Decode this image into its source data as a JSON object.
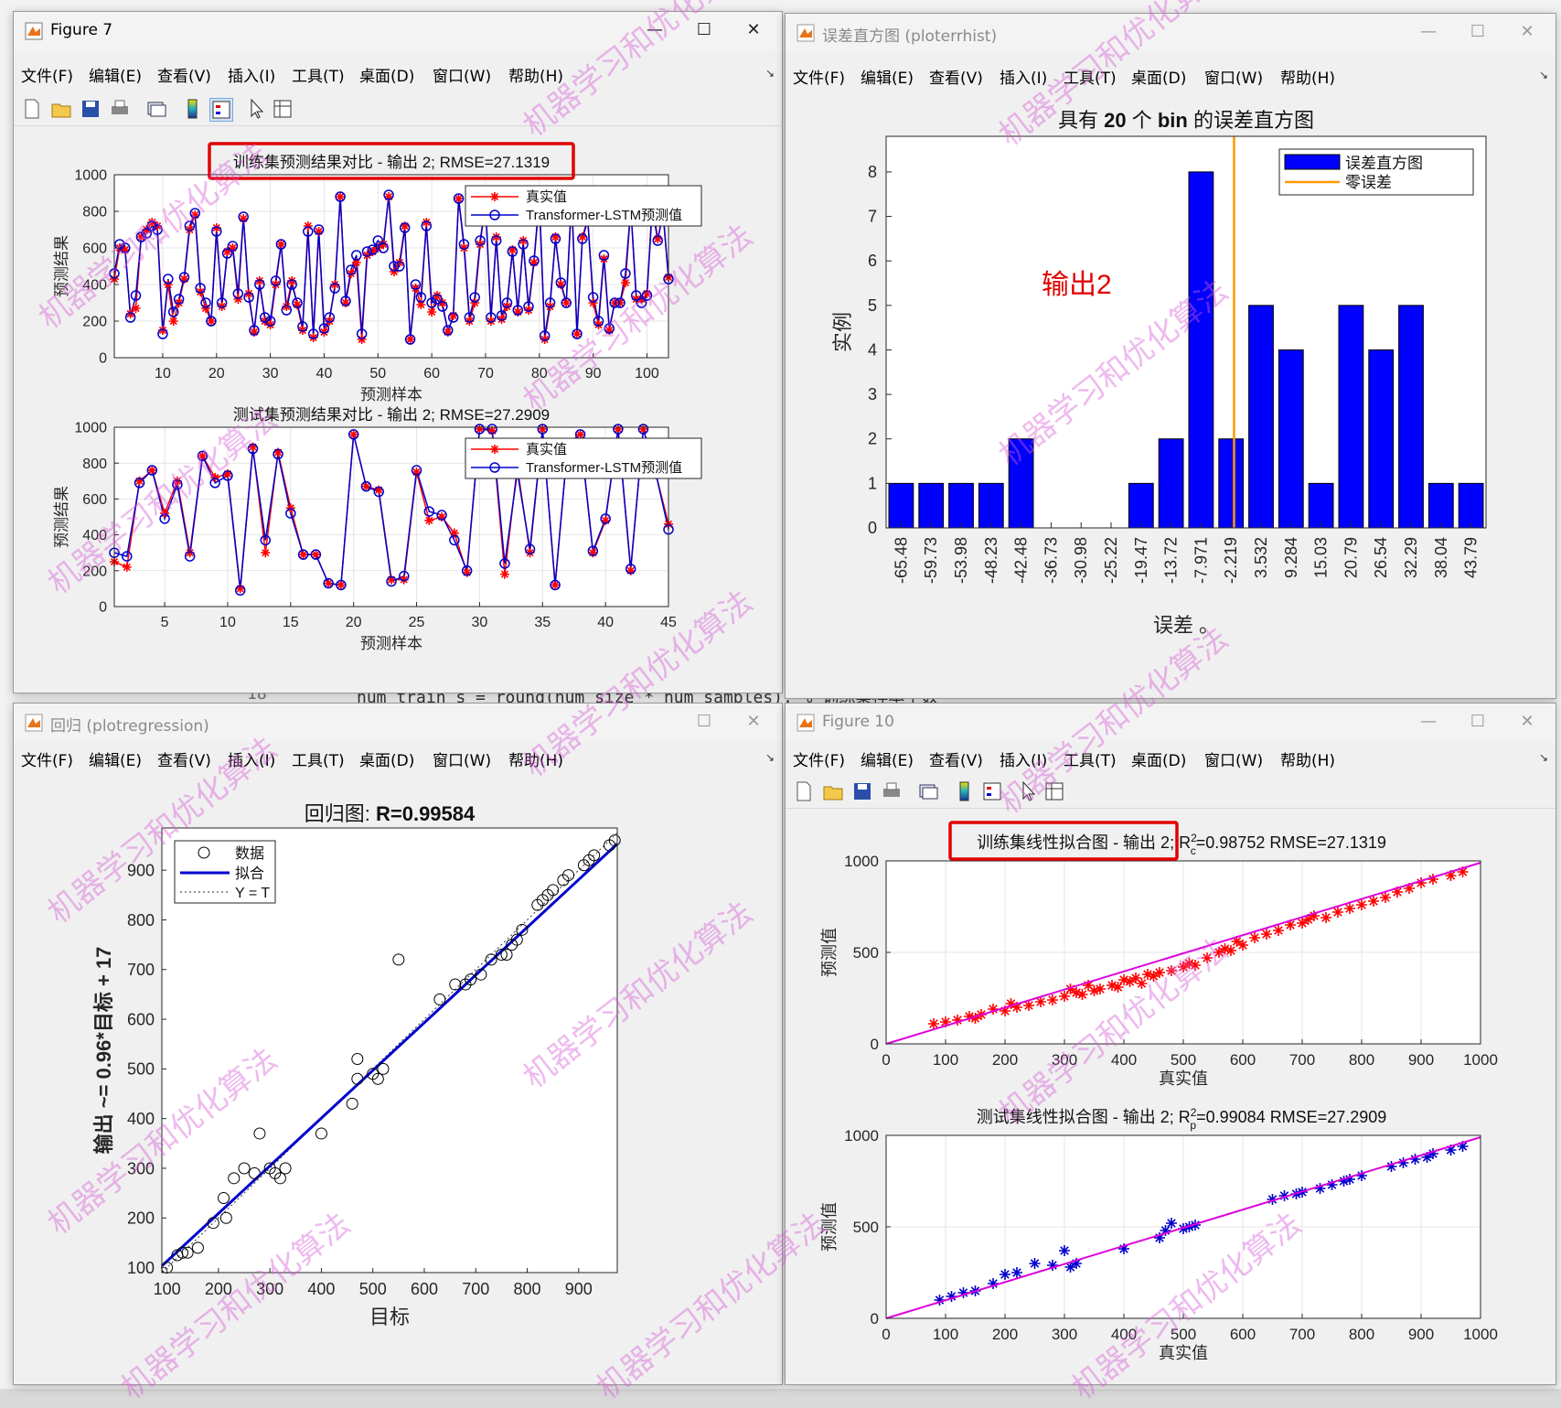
{
  "background_code": [
    {
      "text": "18",
      "x": 270,
      "y": 752
    },
    {
      "text": "num_train_s = round(num_size * num_samples); % 训练集样本个数",
      "x": 390,
      "y": 752
    }
  ],
  "menu": [
    "文件(F)",
    "编辑(E)",
    "查看(V)",
    "插入(I)",
    "工具(T)",
    "桌面(D)",
    "窗口(W)",
    "帮助(H)"
  ],
  "windows": {
    "fig7": {
      "title": "Figure 7",
      "train_title": "训练集预测结果对比 - 输出 2; RMSE=27.1319",
      "test_title": "测试集预测结果对比 - 输出 2; RMSE=27.2909",
      "xlabel": "预测样本",
      "ylabel": "预测结果",
      "legend": [
        "真实值",
        "Transformer-LSTM预测值"
      ]
    },
    "hist": {
      "title": "误差直方图 (ploterrhist)",
      "plot_title_parts": [
        "具有 ",
        "20",
        " 个 ",
        "bin",
        " 的误差直方图"
      ],
      "xlabel": "误差 。",
      "ylabel": "实例",
      "annotation": "输出2",
      "legend": [
        "误差直方图",
        "零误差"
      ]
    },
    "regr": {
      "title": "回归 (plotregression)",
      "plot_title_prefix": "回归图: ",
      "plot_title_value": "R=0.99584",
      "xlabel": "目标",
      "ylabel": "输出 ~= 0.96*目标 + 17",
      "legend": [
        "数据",
        "拟合",
        "Y = T"
      ]
    },
    "fig10": {
      "title": "Figure 10",
      "train_title_main": "训练集线性拟合图 - 输出 2; R",
      "train_title_sup": "2",
      "train_title_sub": "c",
      "train_title_tail": "=0.98752  RMSE=27.1319",
      "test_title_main": "测试集线性拟合图 - 输出 2; R",
      "test_title_sup": "2",
      "test_title_sub": "p",
      "test_title_tail": "=0.99084  RMSE=27.2909",
      "xlabel": "真实值",
      "ylabel": "预测值"
    }
  },
  "watermark": "机器学习和优化算法",
  "colors": {
    "true": "#ff0000",
    "pred": "#0000cc",
    "bar": "#0000ff",
    "zero": "#ff9900",
    "fit": "#dd00dd",
    "highlight": "#e00000"
  },
  "chart_data": [
    {
      "type": "line",
      "title": "训练集预测结果对比 - 输出 2; RMSE=27.1319",
      "xlabel": "预测样本",
      "ylabel": "预测结果",
      "xlim": [
        1,
        104
      ],
      "ylim": [
        0,
        1000
      ],
      "xticks": [
        10,
        20,
        30,
        40,
        50,
        60,
        70,
        80,
        90,
        100
      ],
      "yticks": [
        0,
        200,
        400,
        600,
        800,
        1000
      ],
      "series": [
        {
          "name": "真实值",
          "values": [
            430,
            600,
            590,
            240,
            270,
            660,
            700,
            740,
            720,
            150,
            400,
            200,
            300,
            430,
            700,
            780,
            360,
            270,
            200,
            710,
            280,
            580,
            600,
            320,
            760,
            350,
            140,
            420,
            200,
            180,
            400,
            620,
            280,
            420,
            290,
            150,
            720,
            110,
            690,
            140,
            200,
            400,
            880,
            300,
            460,
            520,
            100,
            560,
            580,
            600,
            620,
            880,
            470,
            520,
            720,
            100,
            380,
            290,
            740,
            250,
            340,
            300,
            140,
            230,
            870,
            600,
            200,
            300,
            620,
            850,
            200,
            660,
            210,
            280,
            590,
            250,
            640,
            260,
            520,
            860,
            100,
            280,
            660,
            400,
            300,
            860,
            130,
            660,
            760,
            300,
            180,
            540,
            150,
            300,
            300,
            410,
            820,
            320,
            320,
            350,
            850,
            650,
            780,
            440
          ]
        },
        {
          "name": "Transformer-LSTM预测值",
          "values": [
            460,
            620,
            600,
            220,
            340,
            660,
            680,
            720,
            700,
            130,
            430,
            250,
            320,
            440,
            720,
            790,
            380,
            300,
            200,
            690,
            300,
            570,
            610,
            350,
            770,
            330,
            150,
            400,
            220,
            200,
            420,
            620,
            260,
            400,
            300,
            170,
            690,
            130,
            700,
            160,
            220,
            380,
            880,
            310,
            480,
            560,
            130,
            580,
            590,
            640,
            600,
            890,
            500,
            500,
            710,
            100,
            400,
            330,
            720,
            300,
            320,
            280,
            150,
            220,
            870,
            620,
            220,
            330,
            640,
            840,
            220,
            640,
            230,
            300,
            580,
            260,
            620,
            280,
            530,
            880,
            120,
            300,
            650,
            410,
            300,
            880,
            130,
            650,
            750,
            330,
            200,
            560,
            160,
            300,
            300,
            460,
            820,
            340,
            300,
            340,
            820,
            640,
            800,
            430
          ]
        }
      ]
    },
    {
      "type": "line",
      "title": "测试集预测结果对比 - 输出 2; RMSE=27.2909",
      "xlabel": "预测样本",
      "ylabel": "预测结果",
      "xlim": [
        1,
        45
      ],
      "ylim": [
        0,
        1000
      ],
      "xticks": [
        5,
        10,
        15,
        20,
        25,
        30,
        35,
        40,
        45
      ],
      "yticks": [
        0,
        200,
        400,
        600,
        800,
        1000
      ],
      "series": [
        {
          "name": "真实值",
          "values": [
            250,
            220,
            700,
            760,
            520,
            700,
            300,
            840,
            720,
            740,
            100,
            890,
            300,
            860,
            550,
            290,
            290,
            130,
            120,
            960,
            670,
            650,
            150,
            150,
            750,
            480,
            500,
            410,
            190,
            990,
            980,
            180,
            780,
            300,
            990,
            120,
            910,
            960,
            300,
            480,
            990,
            200,
            990,
            740,
            460
          ]
        },
        {
          "name": "Transformer-LSTM预测值",
          "values": [
            300,
            280,
            690,
            760,
            490,
            680,
            280,
            840,
            690,
            730,
            90,
            880,
            370,
            850,
            520,
            290,
            290,
            130,
            120,
            960,
            670,
            640,
            140,
            170,
            760,
            530,
            510,
            370,
            200,
            990,
            990,
            240,
            750,
            320,
            990,
            120,
            900,
            960,
            310,
            490,
            990,
            210,
            990,
            740,
            430
          ]
        }
      ]
    },
    {
      "type": "bar",
      "title": "具有 20 个 bin 的误差直方图",
      "xlabel": "误差 。",
      "ylabel": "实例",
      "categories": [
        "-65.48",
        "-59.73",
        "-53.98",
        "-48.23",
        "-42.48",
        "-36.73",
        "-30.98",
        "-25.22",
        "-19.47",
        "-13.72",
        "-7.971",
        "-2.219",
        "3.532",
        "9.284",
        "15.03",
        "20.79",
        "26.54",
        "32.29",
        "38.04",
        "43.79"
      ],
      "values": [
        1,
        1,
        1,
        1,
        2,
        0,
        0,
        0,
        1,
        2,
        8,
        2,
        5,
        4,
        1,
        5,
        4,
        5,
        1,
        1
      ],
      "ylim": [
        0,
        8.8
      ],
      "yticks": [
        0,
        1,
        2,
        3,
        4,
        5,
        6,
        7,
        8
      ],
      "zero_error_line": 0
    },
    {
      "type": "scatter",
      "title": "回归图: R=0.99584",
      "xlabel": "目标",
      "ylabel": "输出 ~= 0.96*目标 + 17",
      "xlim": [
        90,
        975
      ],
      "ylim": [
        90,
        985
      ],
      "xticks": [
        100,
        200,
        300,
        400,
        500,
        600,
        700,
        800,
        900
      ],
      "yticks": [
        100,
        200,
        300,
        400,
        500,
        600,
        700,
        800,
        900
      ],
      "fit": {
        "slope": 0.96,
        "intercept": 17
      },
      "x": [
        100,
        120,
        130,
        140,
        160,
        190,
        210,
        215,
        230,
        250,
        270,
        280,
        300,
        310,
        320,
        330,
        400,
        460,
        470,
        470,
        500,
        510,
        520,
        550,
        630,
        660,
        680,
        690,
        710,
        730,
        750,
        760,
        770,
        780,
        790,
        820,
        830,
        840,
        850,
        870,
        880,
        910,
        920,
        930,
        960,
        970
      ],
      "y": [
        100,
        125,
        130,
        130,
        140,
        190,
        240,
        200,
        280,
        300,
        290,
        370,
        300,
        290,
        280,
        300,
        370,
        430,
        480,
        520,
        490,
        480,
        500,
        720,
        640,
        670,
        670,
        680,
        690,
        720,
        730,
        730,
        750,
        760,
        780,
        830,
        840,
        850,
        860,
        880,
        890,
        910,
        920,
        930,
        950,
        960
      ]
    },
    {
      "type": "scatter",
      "title": "训练集线性拟合图 - 输出 2; R2c=0.98752  RMSE=27.1319",
      "xlabel": "真实值",
      "ylabel": "预测值",
      "xlim": [
        0,
        1000
      ],
      "ylim": [
        0,
        1000
      ],
      "xticks": [
        0,
        100,
        200,
        300,
        400,
        500,
        600,
        700,
        800,
        900,
        1000
      ],
      "yticks": [
        0,
        500,
        1000
      ],
      "fit": {
        "x": [
          0,
          1000
        ],
        "y": [
          0,
          990
        ]
      },
      "x": [
        80,
        100,
        120,
        140,
        150,
        160,
        180,
        200,
        210,
        220,
        240,
        260,
        280,
        300,
        310,
        320,
        330,
        340,
        350,
        360,
        380,
        390,
        400,
        410,
        420,
        430,
        440,
        450,
        460,
        480,
        500,
        510,
        520,
        540,
        560,
        570,
        580,
        590,
        600,
        620,
        640,
        660,
        680,
        700,
        710,
        720,
        740,
        760,
        780,
        800,
        820,
        840,
        860,
        880,
        900,
        920,
        950,
        970
      ],
      "y": [
        110,
        120,
        130,
        150,
        140,
        160,
        190,
        180,
        220,
        200,
        210,
        230,
        240,
        260,
        300,
        280,
        270,
        320,
        290,
        300,
        320,
        310,
        350,
        340,
        360,
        330,
        380,
        370,
        390,
        400,
        420,
        440,
        430,
        470,
        500,
        520,
        510,
        560,
        540,
        580,
        600,
        620,
        650,
        660,
        680,
        700,
        690,
        720,
        740,
        760,
        780,
        800,
        830,
        850,
        880,
        900,
        920,
        940
      ]
    },
    {
      "type": "scatter",
      "title": "测试集线性拟合图 - 输出 2; R2p=0.99084  RMSE=27.2909",
      "xlabel": "真实值",
      "ylabel": "预测值",
      "xlim": [
        0,
        1000
      ],
      "ylim": [
        0,
        1000
      ],
      "xticks": [
        0,
        100,
        200,
        300,
        400,
        500,
        600,
        700,
        800,
        900,
        1000
      ],
      "yticks": [
        0,
        500,
        1000
      ],
      "fit": {
        "x": [
          0,
          1000
        ],
        "y": [
          0,
          990
        ]
      },
      "x": [
        90,
        110,
        130,
        150,
        180,
        200,
        220,
        250,
        280,
        300,
        310,
        320,
        400,
        460,
        470,
        480,
        500,
        510,
        520,
        650,
        670,
        690,
        700,
        730,
        750,
        770,
        780,
        800,
        850,
        870,
        890,
        910,
        920,
        950,
        970
      ],
      "y": [
        100,
        120,
        140,
        150,
        190,
        240,
        250,
        300,
        290,
        370,
        280,
        300,
        380,
        440,
        480,
        520,
        490,
        500,
        510,
        650,
        670,
        680,
        690,
        710,
        730,
        750,
        760,
        780,
        830,
        850,
        870,
        880,
        900,
        920,
        940
      ]
    }
  ]
}
